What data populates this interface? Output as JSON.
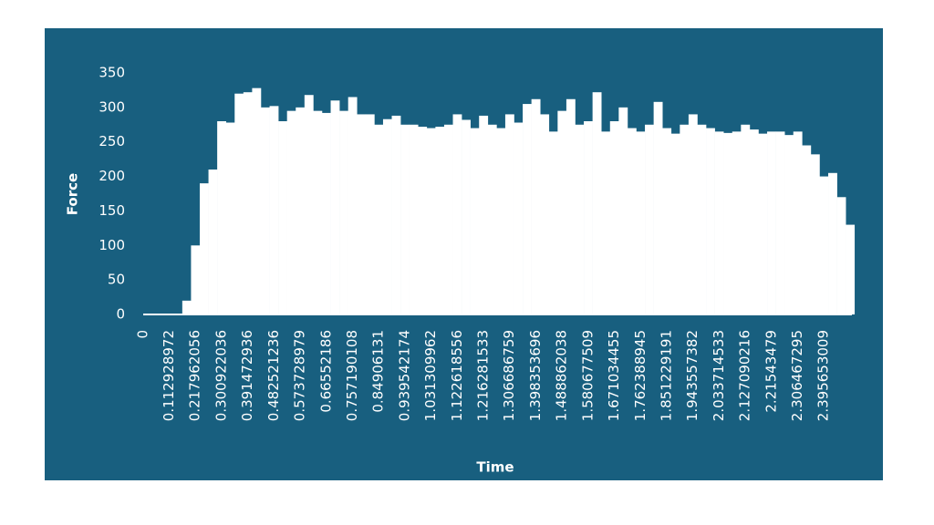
{
  "chart_data": {
    "type": "bar",
    "x_label": "Time",
    "y_label": "Force",
    "categories": [
      "0",
      null,
      null,
      "0.112928972",
      null,
      null,
      "0.217962056",
      null,
      null,
      "0.300922036",
      null,
      null,
      "0.391472936",
      null,
      null,
      "0.482521236",
      null,
      null,
      "0.573728979",
      null,
      null,
      "0.66552186",
      null,
      null,
      "0.757190108",
      null,
      null,
      "0.84906131",
      null,
      null,
      "0.939542174",
      null,
      null,
      "1.031309962",
      null,
      null,
      "1.122618556",
      null,
      null,
      "1.216281533",
      null,
      null,
      "1.306686759",
      null,
      null,
      "1.398353696",
      null,
      null,
      "1.488862038",
      null,
      null,
      "1.580677509",
      null,
      null,
      "1.671034455",
      null,
      null,
      "1.762388945",
      null,
      null,
      "1.851229191",
      null,
      null,
      "1.943557382",
      null,
      null,
      "2.033714533",
      null,
      null,
      "2.127090216",
      null,
      null,
      "2.21543479",
      null,
      null,
      "2.306467295",
      null,
      null,
      "2.395653009",
      null,
      null,
      null
    ],
    "values": [
      0,
      0,
      0,
      0,
      0,
      20,
      100,
      190,
      210,
      280,
      278,
      320,
      322,
      328,
      300,
      302,
      280,
      295,
      300,
      318,
      295,
      292,
      310,
      295,
      315,
      290,
      290,
      275,
      283,
      288,
      275,
      275,
      272,
      270,
      272,
      275,
      290,
      282,
      270,
      288,
      275,
      270,
      290,
      278,
      305,
      312,
      290,
      265,
      295,
      312,
      275,
      280,
      322,
      265,
      280,
      300,
      270,
      265,
      275,
      308,
      270,
      262,
      275,
      290,
      275,
      270,
      265,
      263,
      265,
      275,
      268,
      262,
      265,
      265,
      260,
      265,
      245,
      232,
      200,
      205,
      170,
      130
    ],
    "color": "#ffffff",
    "ylim": [
      0,
      350
    ],
    "yticks": [
      0,
      50,
      100,
      150,
      200,
      250,
      300,
      350
    ],
    "grid": false
  }
}
